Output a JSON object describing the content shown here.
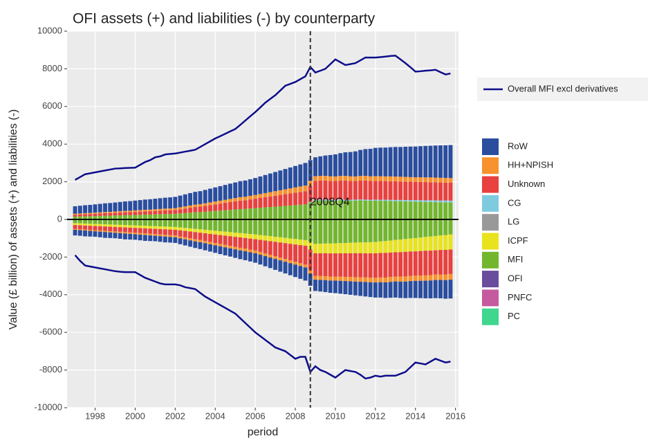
{
  "chart_data": {
    "type": "stacked_bar",
    "title": "OFI assets (+) and liabilities (-) by counterparty",
    "xlabel": "period",
    "ylabel": "Value (£ billion) of assets (+) and liabilities (-)",
    "xlim": [
      1996.6,
      2016.15
    ],
    "xticks": [
      1998,
      2000,
      2002,
      2004,
      2006,
      2008,
      2010,
      2012,
      2014,
      2016
    ],
    "ylim": [
      -10000,
      10000
    ],
    "yticks": [
      -10000,
      -8000,
      -6000,
      -4000,
      -2000,
      0,
      2000,
      4000,
      6000,
      8000,
      10000
    ],
    "grid": true,
    "x": [
      1997,
      1997.25,
      1997.5,
      1997.75,
      1998,
      1998.25,
      1998.5,
      1998.75,
      1999,
      1999.25,
      1999.5,
      1999.75,
      2000,
      2000.25,
      2000.5,
      2000.75,
      2001,
      2001.25,
      2001.5,
      2001.75,
      2002,
      2002.25,
      2002.5,
      2002.75,
      2003,
      2003.25,
      2003.5,
      2003.75,
      2004,
      2004.25,
      2004.5,
      2004.75,
      2005,
      2005.25,
      2005.5,
      2005.75,
      2006,
      2006.25,
      2006.5,
      2006.75,
      2007,
      2007.25,
      2007.5,
      2007.75,
      2008,
      2008.25,
      2008.5,
      2008.75,
      2009,
      2009.25,
      2009.5,
      2009.75,
      2010,
      2010.25,
      2010.5,
      2010.75,
      2011,
      2011.25,
      2011.5,
      2011.75,
      2012,
      2012.25,
      2012.5,
      2012.75,
      2013,
      2013.25,
      2013.5,
      2013.75,
      2014,
      2014.25,
      2014.5,
      2014.75,
      2015,
      2015.25,
      2015.5,
      2015.75
    ],
    "series": [
      {
        "name": "RoW",
        "color": "#2a4d9e",
        "assets": [
          400,
          410,
          420,
          430,
          440,
          450,
          460,
          470,
          480,
          490,
          500,
          510,
          520,
          530,
          540,
          550,
          560,
          570,
          580,
          590,
          600,
          620,
          640,
          660,
          680,
          690,
          710,
          730,
          750,
          770,
          790,
          810,
          830,
          850,
          860,
          880,
          900,
          930,
          960,
          990,
          1020,
          1050,
          1080,
          1110,
          1140,
          1170,
          1200,
          1100,
          1000,
          1040,
          1080,
          1130,
          1170,
          1210,
          1250,
          1290,
          1330,
          1380,
          1420,
          1460,
          1500,
          1520,
          1530,
          1550,
          1570,
          1580,
          1600,
          1620,
          1630,
          1650,
          1670,
          1680,
          1700,
          1720,
          1730,
          1750
        ],
        "liabilities": [
          -300,
          -300,
          -310,
          -300,
          -290,
          -300,
          -310,
          -300,
          -290,
          -300,
          -310,
          -300,
          -290,
          -300,
          -310,
          -300,
          -290,
          -300,
          -310,
          -300,
          -300,
          -312,
          -325,
          -337,
          -350,
          -362,
          -375,
          -387,
          -400,
          -412,
          -425,
          -437,
          -450,
          -462,
          -475,
          -487,
          -500,
          -520,
          -540,
          -560,
          -580,
          -600,
          -620,
          -640,
          -660,
          -680,
          -700,
          -650,
          -600,
          -617,
          -633,
          -650,
          -667,
          -683,
          -700,
          -717,
          -733,
          -750,
          -767,
          -783,
          -800,
          -813,
          -827,
          -840,
          -853,
          -867,
          -880,
          -893,
          -907,
          -920,
          -933,
          -947,
          -960,
          -973,
          -987,
          -1000
        ]
      },
      {
        "name": "HH+NPISH",
        "color": "#f7922e",
        "assets": [
          50,
          52,
          55,
          57,
          60,
          62,
          65,
          67,
          70,
          72,
          75,
          77,
          80,
          82,
          85,
          87,
          90,
          92,
          95,
          97,
          100,
          106,
          112,
          119,
          125,
          131,
          137,
          144,
          150,
          156,
          162,
          169,
          175,
          181,
          187,
          194,
          200,
          210,
          220,
          230,
          240,
          250,
          260,
          270,
          280,
          290,
          300,
          270,
          250,
          250,
          255,
          250,
          245,
          250,
          255,
          250,
          245,
          250,
          255,
          250,
          250,
          250,
          250,
          255,
          255,
          250,
          250,
          245,
          245,
          250,
          250,
          255,
          255,
          250,
          250,
          250
        ],
        "liabilities": [
          -50,
          -52,
          -55,
          -57,
          -60,
          -62,
          -65,
          -67,
          -70,
          -72,
          -75,
          -77,
          -80,
          -82,
          -85,
          -87,
          -90,
          -92,
          -95,
          -97,
          -100,
          -103,
          -106,
          -109,
          -112,
          -116,
          -119,
          -122,
          -125,
          -128,
          -131,
          -134,
          -137,
          -141,
          -144,
          -147,
          -150,
          -150,
          -150,
          -150,
          -150,
          -150,
          -150,
          -150,
          -150,
          -150,
          -150,
          -175,
          -200,
          -204,
          -208,
          -212,
          -217,
          -221,
          -225,
          -229,
          -233,
          -237,
          -242,
          -246,
          -250,
          -253,
          -257,
          -260,
          -263,
          -267,
          -270,
          -273,
          -277,
          -280,
          -283,
          -287,
          -290,
          -293,
          -297,
          -300
        ]
      },
      {
        "name": "Unknown",
        "color": "#e8413f",
        "assets": [
          100,
          105,
          110,
          115,
          120,
          125,
          130,
          135,
          140,
          145,
          150,
          155,
          160,
          165,
          170,
          175,
          180,
          185,
          190,
          195,
          200,
          220,
          240,
          260,
          280,
          290,
          310,
          330,
          350,
          370,
          390,
          410,
          430,
          450,
          460,
          480,
          500,
          520,
          540,
          560,
          580,
          600,
          620,
          640,
          660,
          680,
          700,
          850,
          1000,
          1000,
          1010,
          1000,
          990,
          1000,
          1010,
          1000,
          990,
          1000,
          1010,
          1000,
          1000,
          1000,
          990,
          990,
          990,
          980,
          980,
          980,
          970,
          970,
          970,
          960,
          960,
          960,
          950,
          950
        ],
        "liabilities": [
          -200,
          -205,
          -210,
          -215,
          -220,
          -225,
          -230,
          -235,
          -240,
          -245,
          -250,
          -255,
          -260,
          -265,
          -270,
          -275,
          -280,
          -285,
          -290,
          -295,
          -300,
          -320,
          -340,
          -360,
          -380,
          -390,
          -410,
          -430,
          -450,
          -470,
          -490,
          -510,
          -530,
          -550,
          -560,
          -580,
          -600,
          -640,
          -680,
          -720,
          -760,
          -800,
          -840,
          -880,
          -920,
          -960,
          -1000,
          -1100,
          -1200,
          -1210,
          -1220,
          -1230,
          -1230,
          -1240,
          -1250,
          -1260,
          -1270,
          -1280,
          -1280,
          -1290,
          -1300,
          -1300,
          -1310,
          -1300,
          -1290,
          -1300,
          -1310,
          -1300,
          -1290,
          -1300,
          -1310,
          -1300,
          -1290,
          -1300,
          -1310,
          -1300
        ]
      },
      {
        "name": "CG",
        "color": "#7ecbe0",
        "assets": [
          0,
          0,
          0,
          0,
          0,
          0,
          0,
          0,
          0,
          0,
          0,
          0,
          0,
          0,
          0,
          0,
          0,
          0,
          0,
          0,
          0,
          0,
          0,
          0,
          0,
          0,
          0,
          0,
          0,
          0,
          0,
          0,
          0,
          0,
          0,
          0,
          0,
          0,
          0,
          0,
          0,
          0,
          0,
          0,
          0,
          0,
          0,
          30,
          50,
          50,
          50,
          50,
          50,
          50,
          50,
          50,
          50,
          50,
          50,
          50,
          50,
          53,
          57,
          60,
          63,
          67,
          70,
          73,
          77,
          80,
          83,
          87,
          90,
          93,
          97,
          100
        ]
      },
      {
        "name": "LG",
        "color": "#999999"
      },
      {
        "name": "ICPF",
        "color": "#e8e31c",
        "liabilities": [
          -100,
          -102,
          -105,
          -107,
          -110,
          -112,
          -115,
          -117,
          -120,
          -122,
          -125,
          -127,
          -130,
          -132,
          -135,
          -137,
          -140,
          -142,
          -145,
          -147,
          -150,
          -156,
          -162,
          -169,
          -175,
          -181,
          -187,
          -194,
          -200,
          -206,
          -212,
          -219,
          -225,
          -231,
          -237,
          -244,
          -250,
          -255,
          -260,
          -265,
          -270,
          -275,
          -280,
          -285,
          -290,
          -295,
          -300,
          -400,
          -500,
          -508,
          -517,
          -525,
          -533,
          -542,
          -550,
          -558,
          -567,
          -575,
          -583,
          -592,
          -600,
          -613,
          -627,
          -640,
          -653,
          -667,
          -680,
          -693,
          -707,
          -720,
          -733,
          -747,
          -760,
          -773,
          -787,
          -800
        ]
      },
      {
        "name": "MFI",
        "color": "#72b62e",
        "assets": [
          150,
          160,
          170,
          170,
          180,
          190,
          200,
          200,
          210,
          220,
          230,
          230,
          240,
          250,
          260,
          260,
          270,
          280,
          290,
          290,
          300,
          320,
          340,
          360,
          380,
          390,
          410,
          430,
          450,
          470,
          490,
          510,
          530,
          550,
          560,
          580,
          600,
          620,
          640,
          660,
          680,
          700,
          720,
          740,
          760,
          780,
          800,
          900,
          1000,
          1010,
          1000,
          990,
          1000,
          1010,
          1000,
          990,
          1000,
          1010,
          1000,
          990,
          1000,
          990,
          990,
          980,
          970,
          970,
          960,
          950,
          950,
          940,
          930,
          930,
          920,
          910,
          910,
          900
        ],
        "liabilities": [
          -200,
          -210,
          -220,
          -230,
          -240,
          -250,
          -260,
          -270,
          -280,
          -290,
          -300,
          -310,
          -320,
          -330,
          -340,
          -350,
          -360,
          -370,
          -380,
          -390,
          -400,
          -425,
          -450,
          -475,
          -500,
          -525,
          -550,
          -575,
          -600,
          -625,
          -650,
          -675,
          -700,
          -725,
          -750,
          -775,
          -800,
          -830,
          -860,
          -890,
          -920,
          -950,
          -980,
          -1010,
          -1040,
          -1070,
          -1100,
          -1200,
          -1300,
          -1290,
          -1280,
          -1280,
          -1270,
          -1260,
          -1250,
          -1240,
          -1230,
          -1220,
          -1220,
          -1210,
          -1200,
          -1170,
          -1150,
          -1120,
          -1090,
          -1070,
          -1040,
          -1010,
          -990,
          -960,
          -930,
          -910,
          -880,
          -850,
          -830,
          -800
        ]
      },
      {
        "name": "OFI",
        "color": "#6a4c9c"
      },
      {
        "name": "PNFC",
        "color": "#c55a9f"
      },
      {
        "name": "PC",
        "color": "#3fd68e"
      }
    ],
    "line": {
      "name": "Overall MFI excl derivatives",
      "color": "#0d0d8a",
      "assets": [
        2100,
        2250,
        2400,
        2450,
        2500,
        2550,
        2600,
        2650,
        2700,
        2710,
        2730,
        2740,
        2750,
        2900,
        3050,
        3150,
        3300,
        3350,
        3450,
        3480,
        3500,
        3550,
        3600,
        3650,
        3700,
        3850,
        4000,
        4150,
        4300,
        4420,
        4550,
        4680,
        4800,
        5020,
        5250,
        5480,
        5700,
        5950,
        6200,
        6400,
        6600,
        6850,
        7100,
        7200,
        7300,
        7450,
        7600,
        8100,
        7800,
        7900,
        8000,
        8250,
        8500,
        8350,
        8200,
        8250,
        8300,
        8450,
        8600,
        8600,
        8600,
        8620,
        8650,
        8680,
        8700,
        8500,
        8300,
        8080,
        7850,
        7870,
        7900,
        7920,
        7950,
        7820,
        7700,
        7750
      ],
      "liabilities": [
        -1900,
        -2200,
        -2450,
        -2500,
        -2550,
        -2600,
        -2650,
        -2700,
        -2750,
        -2780,
        -2800,
        -2800,
        -2800,
        -2950,
        -3100,
        -3200,
        -3300,
        -3400,
        -3450,
        -3450,
        -3450,
        -3500,
        -3600,
        -3650,
        -3700,
        -3900,
        -4100,
        -4250,
        -4400,
        -4550,
        -4700,
        -4850,
        -5000,
        -5250,
        -5500,
        -5750,
        -6000,
        -6200,
        -6400,
        -6600,
        -6800,
        -6900,
        -7000,
        -7200,
        -7400,
        -7300,
        -7300,
        -8100,
        -7800,
        -8000,
        -8100,
        -8250,
        -8400,
        -8200,
        -8000,
        -8050,
        -8100,
        -8250,
        -8450,
        -8400,
        -8300,
        -8350,
        -8300,
        -8300,
        -8300,
        -8200,
        -8100,
        -7850,
        -7600,
        -7650,
        -7700,
        -7550,
        -7400,
        -7500,
        -7600,
        -7550
      ]
    },
    "annotation": {
      "text": "2008Q4",
      "x": 2008.75,
      "y": 900
    }
  }
}
